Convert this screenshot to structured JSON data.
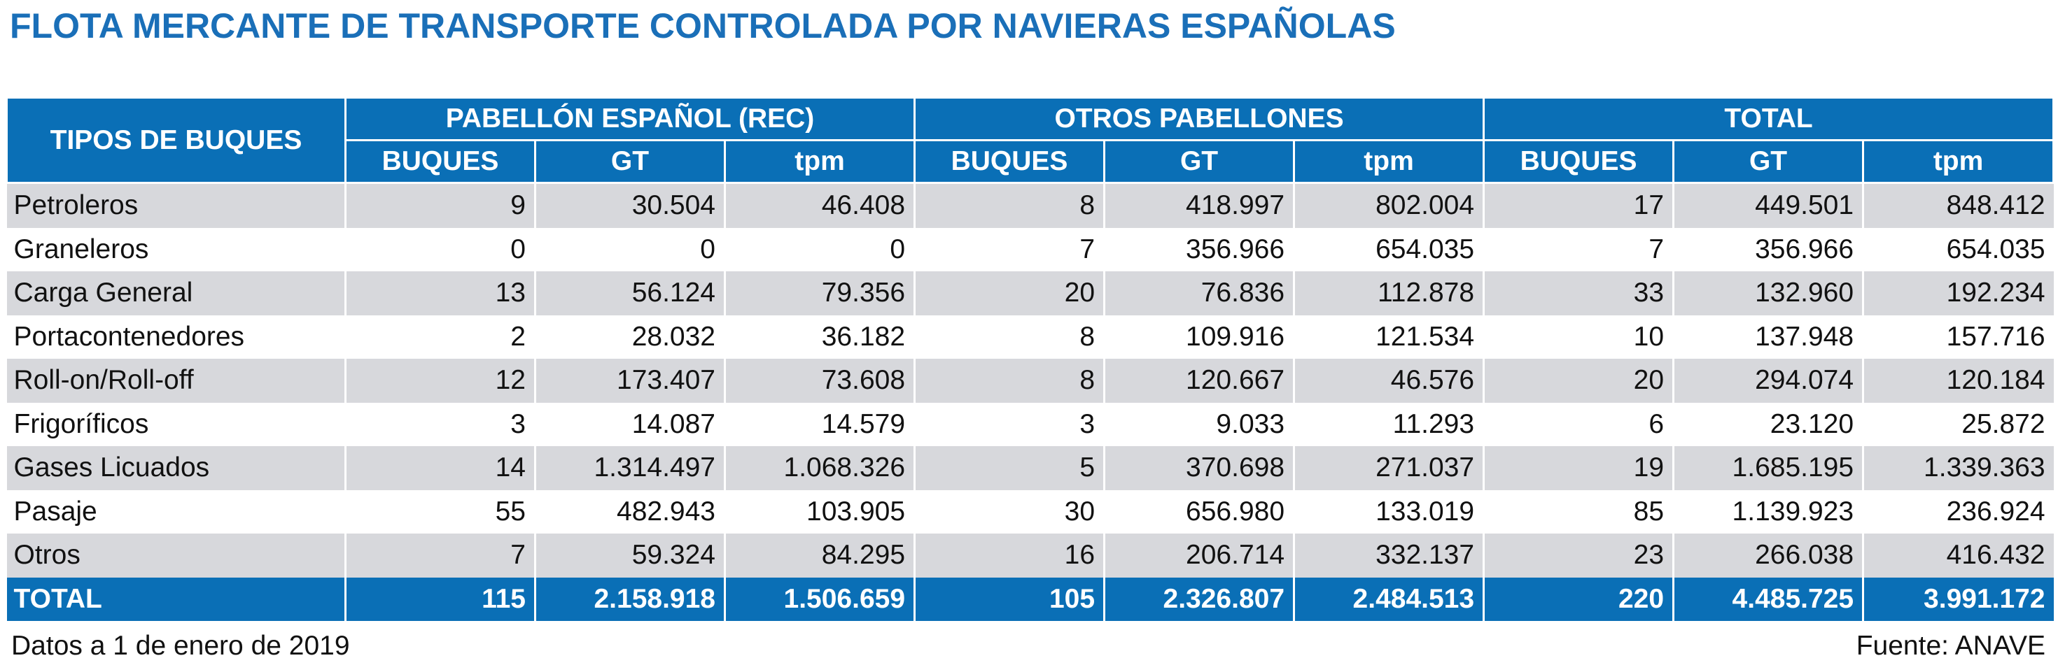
{
  "title": "FLOTA MERCANTE DE TRANSPORTE CONTROLADA POR NAVIERAS ESPAÑOLAS",
  "header": {
    "row_label": "TIPOS DE BUQUES",
    "groups": [
      "PABELLÓN ESPAÑOL (REC)",
      "OTROS PABELLONES",
      "TOTAL"
    ],
    "subcolumns": [
      "BUQUES",
      "GT",
      "tpm",
      "BUQUES",
      "GT",
      "tpm",
      "BUQUES",
      "GT",
      "tpm"
    ]
  },
  "rows": [
    {
      "type": "Petroleros",
      "values": [
        "9",
        "30.504",
        "46.408",
        "8",
        "418.997",
        "802.004",
        "17",
        "449.501",
        "848.412"
      ]
    },
    {
      "type": "Graneleros",
      "values": [
        "0",
        "0",
        "0",
        "7",
        "356.966",
        "654.035",
        "7",
        "356.966",
        "654.035"
      ]
    },
    {
      "type": "Carga General",
      "values": [
        "13",
        "56.124",
        "79.356",
        "20",
        "76.836",
        "112.878",
        "33",
        "132.960",
        "192.234"
      ]
    },
    {
      "type": "Portacontenedores",
      "values": [
        "2",
        "28.032",
        "36.182",
        "8",
        "109.916",
        "121.534",
        "10",
        "137.948",
        "157.716"
      ]
    },
    {
      "type": "Roll-on/Roll-off",
      "values": [
        "12",
        "173.407",
        "73.608",
        "8",
        "120.667",
        "46.576",
        "20",
        "294.074",
        "120.184"
      ]
    },
    {
      "type": "Frigoríficos",
      "values": [
        "3",
        "14.087",
        "14.579",
        "3",
        "9.033",
        "11.293",
        "6",
        "23.120",
        "25.872"
      ]
    },
    {
      "type": "Gases Licuados",
      "values": [
        "14",
        "1.314.497",
        "1.068.326",
        "5",
        "370.698",
        "271.037",
        "19",
        "1.685.195",
        "1.339.363"
      ]
    },
    {
      "type": "Pasaje",
      "values": [
        "55",
        "482.943",
        "103.905",
        "30",
        "656.980",
        "133.019",
        "85",
        "1.139.923",
        "236.924"
      ]
    },
    {
      "type": "Otros",
      "values": [
        "7",
        "59.324",
        "84.295",
        "16",
        "206.714",
        "332.137",
        "23",
        "266.038",
        "416.432"
      ]
    }
  ],
  "total": {
    "type": "TOTAL",
    "values": [
      "115",
      "2.158.918",
      "1.506.659",
      "105",
      "2.326.807",
      "2.484.513",
      "220",
      "4.485.725",
      "3.991.172"
    ]
  },
  "footnote": "Datos a 1 de enero de 2019",
  "source": "Fuente: ANAVE",
  "colors": {
    "title": "#1a6fb8",
    "header_bg": "#0a6fb6",
    "stripe": "#d7d8dc"
  }
}
